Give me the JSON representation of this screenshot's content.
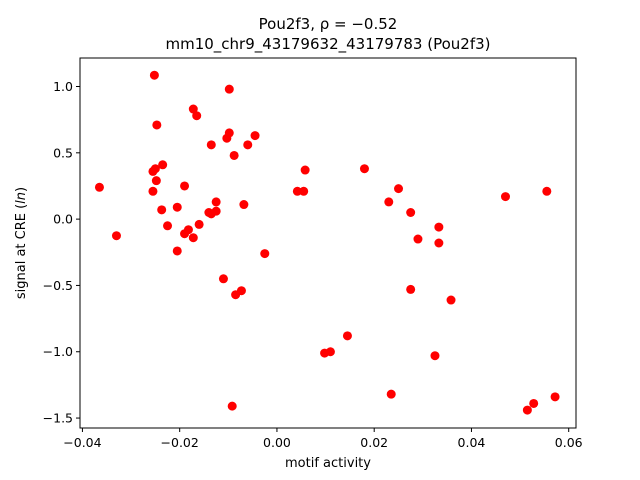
{
  "chart_data": {
    "type": "scatter",
    "title_line1": "Pou2f3, ρ = −0.52",
    "title_line2": "mm10_chr9_43179632_43179783 (Pou2f3)",
    "xlabel": "motif activity",
    "ylabel": "signal at CRE (ln)",
    "xlim": [
      -0.0405,
      0.0615
    ],
    "ylim": [
      -1.575,
      1.215
    ],
    "xticks": [
      -0.04,
      -0.02,
      0.0,
      0.02,
      0.04,
      0.06
    ],
    "xtick_labels": [
      "−0.04",
      "−0.02",
      "0.00",
      "0.02",
      "0.04",
      "0.06"
    ],
    "yticks": [
      -1.5,
      -1.0,
      -0.5,
      0.0,
      0.5,
      1.0
    ],
    "ytick_labels": [
      "−1.5",
      "−1.0",
      "−0.5",
      "0.0",
      "0.5",
      "1.0"
    ],
    "marker_color": "#ff0000",
    "points": [
      [
        -0.0365,
        0.24
      ],
      [
        -0.033,
        -0.125
      ],
      [
        -0.0252,
        1.085
      ],
      [
        -0.0247,
        0.71
      ],
      [
        -0.025,
        0.38
      ],
      [
        -0.0255,
        0.36
      ],
      [
        -0.0255,
        0.21
      ],
      [
        -0.0248,
        0.29
      ],
      [
        -0.0235,
        0.41
      ],
      [
        -0.0237,
        0.07
      ],
      [
        -0.0225,
        -0.05
      ],
      [
        -0.0205,
        0.09
      ],
      [
        -0.0205,
        -0.24
      ],
      [
        -0.019,
        0.25
      ],
      [
        -0.019,
        -0.11
      ],
      [
        -0.0182,
        -0.08
      ],
      [
        -0.0172,
        -0.14
      ],
      [
        -0.0172,
        0.83
      ],
      [
        -0.0165,
        0.78
      ],
      [
        -0.016,
        -0.04
      ],
      [
        -0.014,
        0.05
      ],
      [
        -0.0135,
        0.04
      ],
      [
        -0.0135,
        0.56
      ],
      [
        -0.0125,
        0.13
      ],
      [
        -0.0125,
        0.06
      ],
      [
        -0.011,
        -0.45
      ],
      [
        -0.0103,
        0.61
      ],
      [
        -0.0098,
        0.65
      ],
      [
        -0.0098,
        0.98
      ],
      [
        -0.0088,
        0.48
      ],
      [
        -0.0085,
        -0.57
      ],
      [
        -0.0073,
        -0.54
      ],
      [
        -0.0068,
        0.11
      ],
      [
        -0.006,
        0.56
      ],
      [
        -0.0045,
        0.63
      ],
      [
        -0.0092,
        -1.41
      ],
      [
        -0.0025,
        -0.26
      ],
      [
        0.0042,
        0.21
      ],
      [
        0.0055,
        0.21
      ],
      [
        0.0058,
        0.37
      ],
      [
        0.0098,
        -1.01
      ],
      [
        0.011,
        -1.0
      ],
      [
        0.0145,
        -0.88
      ],
      [
        0.018,
        0.38
      ],
      [
        0.023,
        0.13
      ],
      [
        0.0235,
        -1.32
      ],
      [
        0.025,
        0.23
      ],
      [
        0.0275,
        0.05
      ],
      [
        0.0275,
        -0.53
      ],
      [
        0.029,
        -0.15
      ],
      [
        0.0325,
        -1.03
      ],
      [
        0.0333,
        -0.06
      ],
      [
        0.0333,
        -0.18
      ],
      [
        0.0358,
        -0.61
      ],
      [
        0.047,
        0.17
      ],
      [
        0.0515,
        -1.44
      ],
      [
        0.0528,
        -1.39
      ],
      [
        0.0555,
        0.21
      ],
      [
        0.0572,
        -1.34
      ]
    ]
  }
}
